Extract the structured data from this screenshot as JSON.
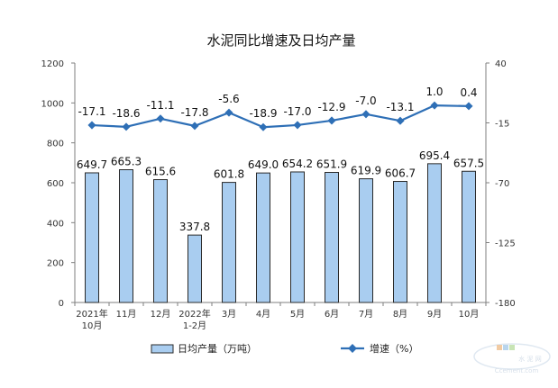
{
  "chart_data": {
    "type": "bar+line",
    "title": "水泥同比增速及日均产量",
    "categories": [
      [
        "2021年",
        "10月"
      ],
      [
        "11月"
      ],
      [
        "12月"
      ],
      [
        "2022年",
        "1-2月"
      ],
      [
        "3月"
      ],
      [
        "4月"
      ],
      [
        "5月"
      ],
      [
        "6月"
      ],
      [
        "7月"
      ],
      [
        "8月"
      ],
      [
        "9月"
      ],
      [
        "10月"
      ]
    ],
    "series": [
      {
        "name": "日均产量（万吨）",
        "type": "bar",
        "axis": "left",
        "values": [
          649.7,
          665.3,
          615.6,
          337.8,
          601.8,
          649.0,
          654.2,
          651.9,
          619.9,
          606.7,
          695.4,
          657.5
        ],
        "labels": [
          "649.7",
          "665.3",
          "615.6",
          "337.8",
          "601.8",
          "649.0",
          "654.2",
          "651.9",
          "619.9",
          "606.7",
          "695.4",
          "657.5"
        ]
      },
      {
        "name": "增速（%）",
        "type": "line",
        "axis": "right",
        "values": [
          -17.1,
          -18.6,
          -11.1,
          -17.8,
          -5.6,
          -18.9,
          -17.0,
          -12.9,
          -7.0,
          -13.1,
          1.0,
          0.4
        ],
        "labels": [
          "-17.1",
          "-18.6",
          "-11.1",
          "-17.8",
          "-5.6",
          "-18.9",
          "-17.0",
          "-12.9",
          "-7.0",
          "-13.1",
          "1.0",
          "0.4"
        ]
      }
    ],
    "left_axis": {
      "ylim": [
        0,
        1200
      ],
      "ticks": [
        "0",
        "200",
        "400",
        "600",
        "800",
        "1000",
        "1200"
      ]
    },
    "right_axis": {
      "ylim": [
        -180,
        40
      ],
      "ticks": [
        "-180",
        "-125",
        "-70",
        "-15",
        "40"
      ]
    },
    "legend_position": "bottom",
    "colors": {
      "bar_fill": "#a9cdf0",
      "bar_stroke": "#2a2a2a",
      "line": "#2e6fb6"
    }
  },
  "watermark": {
    "text": "水 泥 网",
    "sub": "Ccement.com"
  }
}
